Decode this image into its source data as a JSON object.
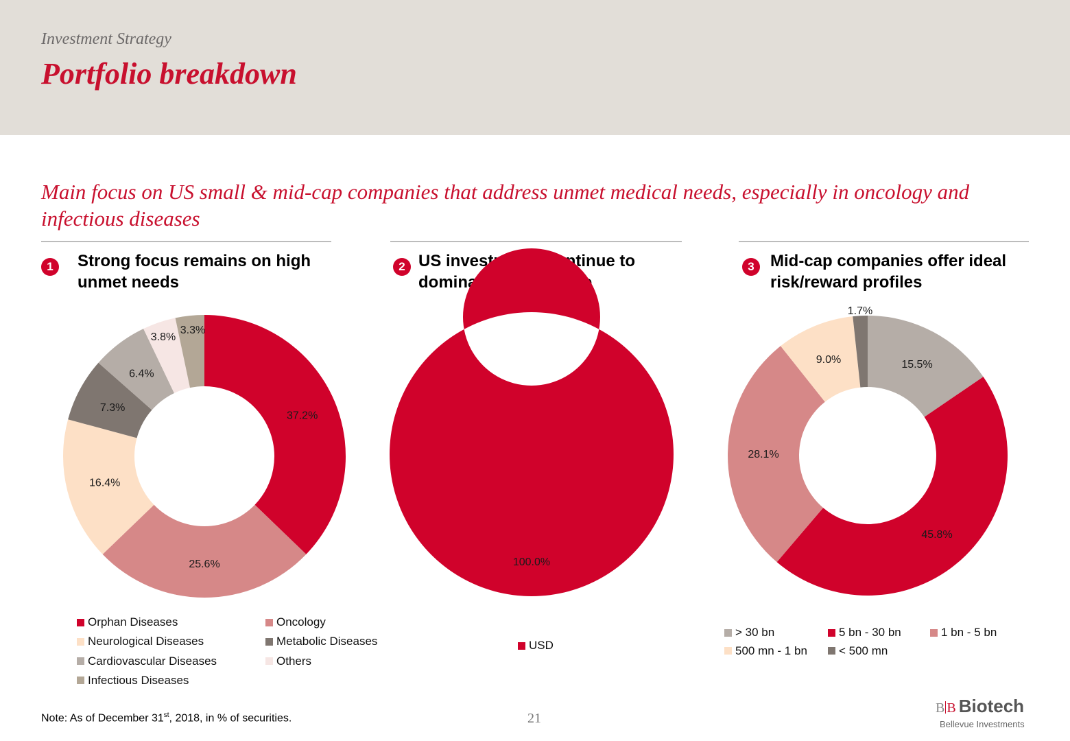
{
  "header": {
    "kicker": "Investment Strategy",
    "title": "Portfolio breakdown"
  },
  "subtitle": "Main focus on US small & mid-cap companies that address unmet medical needs, especially in oncology and infectious diseases",
  "sections": [
    {
      "number": "1",
      "title": "Strong focus remains on high unmet needs"
    },
    {
      "number": "2",
      "title": "US investments continue to dominate the portfolio"
    },
    {
      "number": "3",
      "title": "Mid-cap companies offer ideal risk/reward profiles"
    }
  ],
  "chart_data": [
    {
      "type": "pie",
      "subtype": "donut",
      "title": "Strong focus remains on high unmet needs",
      "start": "12 o'clock, clockwise",
      "unit": "%",
      "slices": [
        {
          "label": "Orphan Diseases",
          "value": 37.2,
          "display": "37.2%",
          "color": "#d0022b"
        },
        {
          "label": "Oncology",
          "value": 25.6,
          "display": "25.6%",
          "color": "#d68888"
        },
        {
          "label": "Neurological Diseases",
          "value": 16.4,
          "display": "16.4%",
          "color": "#fde0c6"
        },
        {
          "label": "Metabolic Diseases",
          "value": 7.3,
          "display": "7.3%",
          "color": "#7f7670"
        },
        {
          "label": "Cardiovascular Diseases",
          "value": 6.4,
          "display": "6.4%",
          "color": "#b5ada7"
        },
        {
          "label": "Others",
          "value": 3.8,
          "display": "3.8%",
          "color": "#f6e6e4"
        },
        {
          "label": "Infectious Diseases",
          "value": 3.3,
          "display": "3.3%",
          "color": "#b3a796"
        }
      ],
      "legend": [
        "Orphan Diseases",
        "Oncology",
        "Neurological Diseases",
        "Metabolic Diseases",
        "Cardiovascular Diseases",
        "Others",
        "Infectious Diseases"
      ],
      "legend_placement": "bottom"
    },
    {
      "type": "pie",
      "subtype": "donut",
      "title": "US investments continue to dominate the portfolio",
      "start": "12 o'clock, clockwise",
      "unit": "%",
      "slices": [
        {
          "label": "USD",
          "value": 100.0,
          "display": "100.0%",
          "color": "#d0022b"
        }
      ],
      "legend": [
        "USD"
      ],
      "legend_placement": "bottom"
    },
    {
      "type": "pie",
      "subtype": "donut",
      "title": "Mid-cap companies offer ideal risk/reward profiles",
      "start": "12 o'clock, clockwise",
      "unit": "%",
      "slices": [
        {
          "label": "> 30 bn",
          "value": 15.5,
          "display": "15.5%",
          "color": "#b5ada7"
        },
        {
          "label": "5 bn - 30 bn",
          "value": 45.8,
          "display": "45.8%",
          "color": "#d0022b"
        },
        {
          "label": "1 bn - 5 bn",
          "value": 28.1,
          "display": "28.1%",
          "color": "#d68888"
        },
        {
          "label": "500 mn - 1 bn",
          "value": 9.0,
          "display": "9.0%",
          "color": "#fde0c6"
        },
        {
          "label": "< 500 mn",
          "value": 1.7,
          "display": "1.7%",
          "color": "#7f7670"
        }
      ],
      "legend": [
        "> 30 bn",
        "5 bn - 30 bn",
        "1 bn - 5 bn",
        "500 mn - 1 bn",
        "< 500 mn"
      ],
      "legend_placement": "bottom"
    }
  ],
  "footer": {
    "note_prefix": "Note: As of December 31",
    "note_sup": "st",
    "note_suffix": ", 2018, in % of securities.",
    "page_number": "21"
  },
  "logo": {
    "mark_left": "B",
    "mark_right": "B",
    "name": "Biotech",
    "tagline": "Bellevue Investments"
  }
}
